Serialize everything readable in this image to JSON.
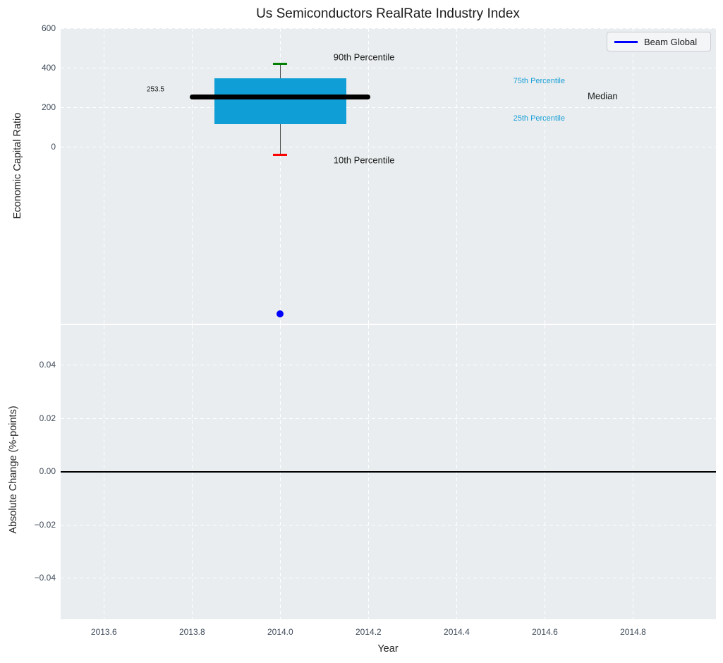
{
  "title": "Us Semiconductors RealRate Industry Index",
  "legend": {
    "label": "Beam Global"
  },
  "colors": {
    "figure_bg": "#ffffff",
    "plot_bg": "#e9edef",
    "grid": "#ffffff",
    "box_fill": "#0f9ed5",
    "median_line": "#000000",
    "whisker": "#4d4d4d",
    "p90_cap": "#008000",
    "p10_cap": "#ff0000",
    "scatter_dot": "#0000ff",
    "legend_line": "#0000ff",
    "tick_label": "#3e4a59",
    "text": "#1a1a1a",
    "percentile_label": "#1ba0d8",
    "zero_line": "#000000"
  },
  "chart_data": [
    {
      "type": "boxplot",
      "title": "Us Semiconductors RealRate Industry Index",
      "ylabel": "Economic Capital Ratio",
      "xlim": [
        2013.502,
        2014.988
      ],
      "ylim": [
        -896,
        600
      ],
      "yticks": [
        0,
        200,
        400,
        600
      ],
      "ytick_labels": [
        "0",
        "200",
        "400",
        "600"
      ],
      "xticks": [
        2013.6,
        2013.8,
        2014.0,
        2014.2,
        2014.4,
        2014.6,
        2014.8
      ],
      "xtick_labels": [
        "2013.6",
        "2013.8",
        "2014.0",
        "2014.2",
        "2014.4",
        "2014.6",
        "2014.8"
      ],
      "grid": "dashed-white",
      "legend_position": "upper right",
      "box": {
        "x_center": 2014.0,
        "p90": 420,
        "p75": 347,
        "median": 253.5,
        "p25": 113,
        "p10": -40,
        "box_x_range": [
          2013.85,
          2014.15
        ],
        "median_x_range": [
          2013.795,
          2014.205
        ]
      },
      "scatter": [
        {
          "name": "Beam Global",
          "x": 2014.0,
          "y": -845
        }
      ],
      "annotations": [
        {
          "text": "90th Percentile",
          "x": 2014.19,
          "y": 452,
          "color": "#1a1a1a",
          "size": 13
        },
        {
          "text": "10th Percentile",
          "x": 2014.19,
          "y": -66,
          "color": "#1a1a1a",
          "size": 13
        },
        {
          "text": "253.5",
          "x": 2013.717,
          "y": 290,
          "color": "#1a1a1a",
          "size": 10
        },
        {
          "text": "75th Percentile",
          "x": 2014.587,
          "y": 331,
          "color": "#1ba0d8",
          "size": 11
        },
        {
          "text": "25th Percentile",
          "x": 2014.587,
          "y": 142,
          "color": "#1ba0d8",
          "size": 11
        },
        {
          "text": "Median",
          "x": 2014.731,
          "y": 256,
          "color": "#1a1a1a",
          "size": 13
        }
      ]
    },
    {
      "type": "line",
      "ylabel": "Absolute Change (%-points)",
      "xlabel": "Year",
      "xlim": [
        2013.502,
        2014.988
      ],
      "ylim": [
        -0.0554,
        0.0551
      ],
      "yticks": [
        -0.04,
        -0.02,
        0,
        0.02,
        0.04
      ],
      "ytick_labels": [
        "−0.04",
        "−0.02",
        "0.00",
        "0.02",
        "0.04"
      ],
      "xticks": [
        2013.6,
        2013.8,
        2014.0,
        2014.2,
        2014.4,
        2014.6,
        2014.8
      ],
      "xtick_labels": [
        "2013.6",
        "2013.8",
        "2014.0",
        "2014.2",
        "2014.4",
        "2014.6",
        "2014.8"
      ],
      "grid": "dashed-white",
      "zero_line": 0.0
    }
  ]
}
